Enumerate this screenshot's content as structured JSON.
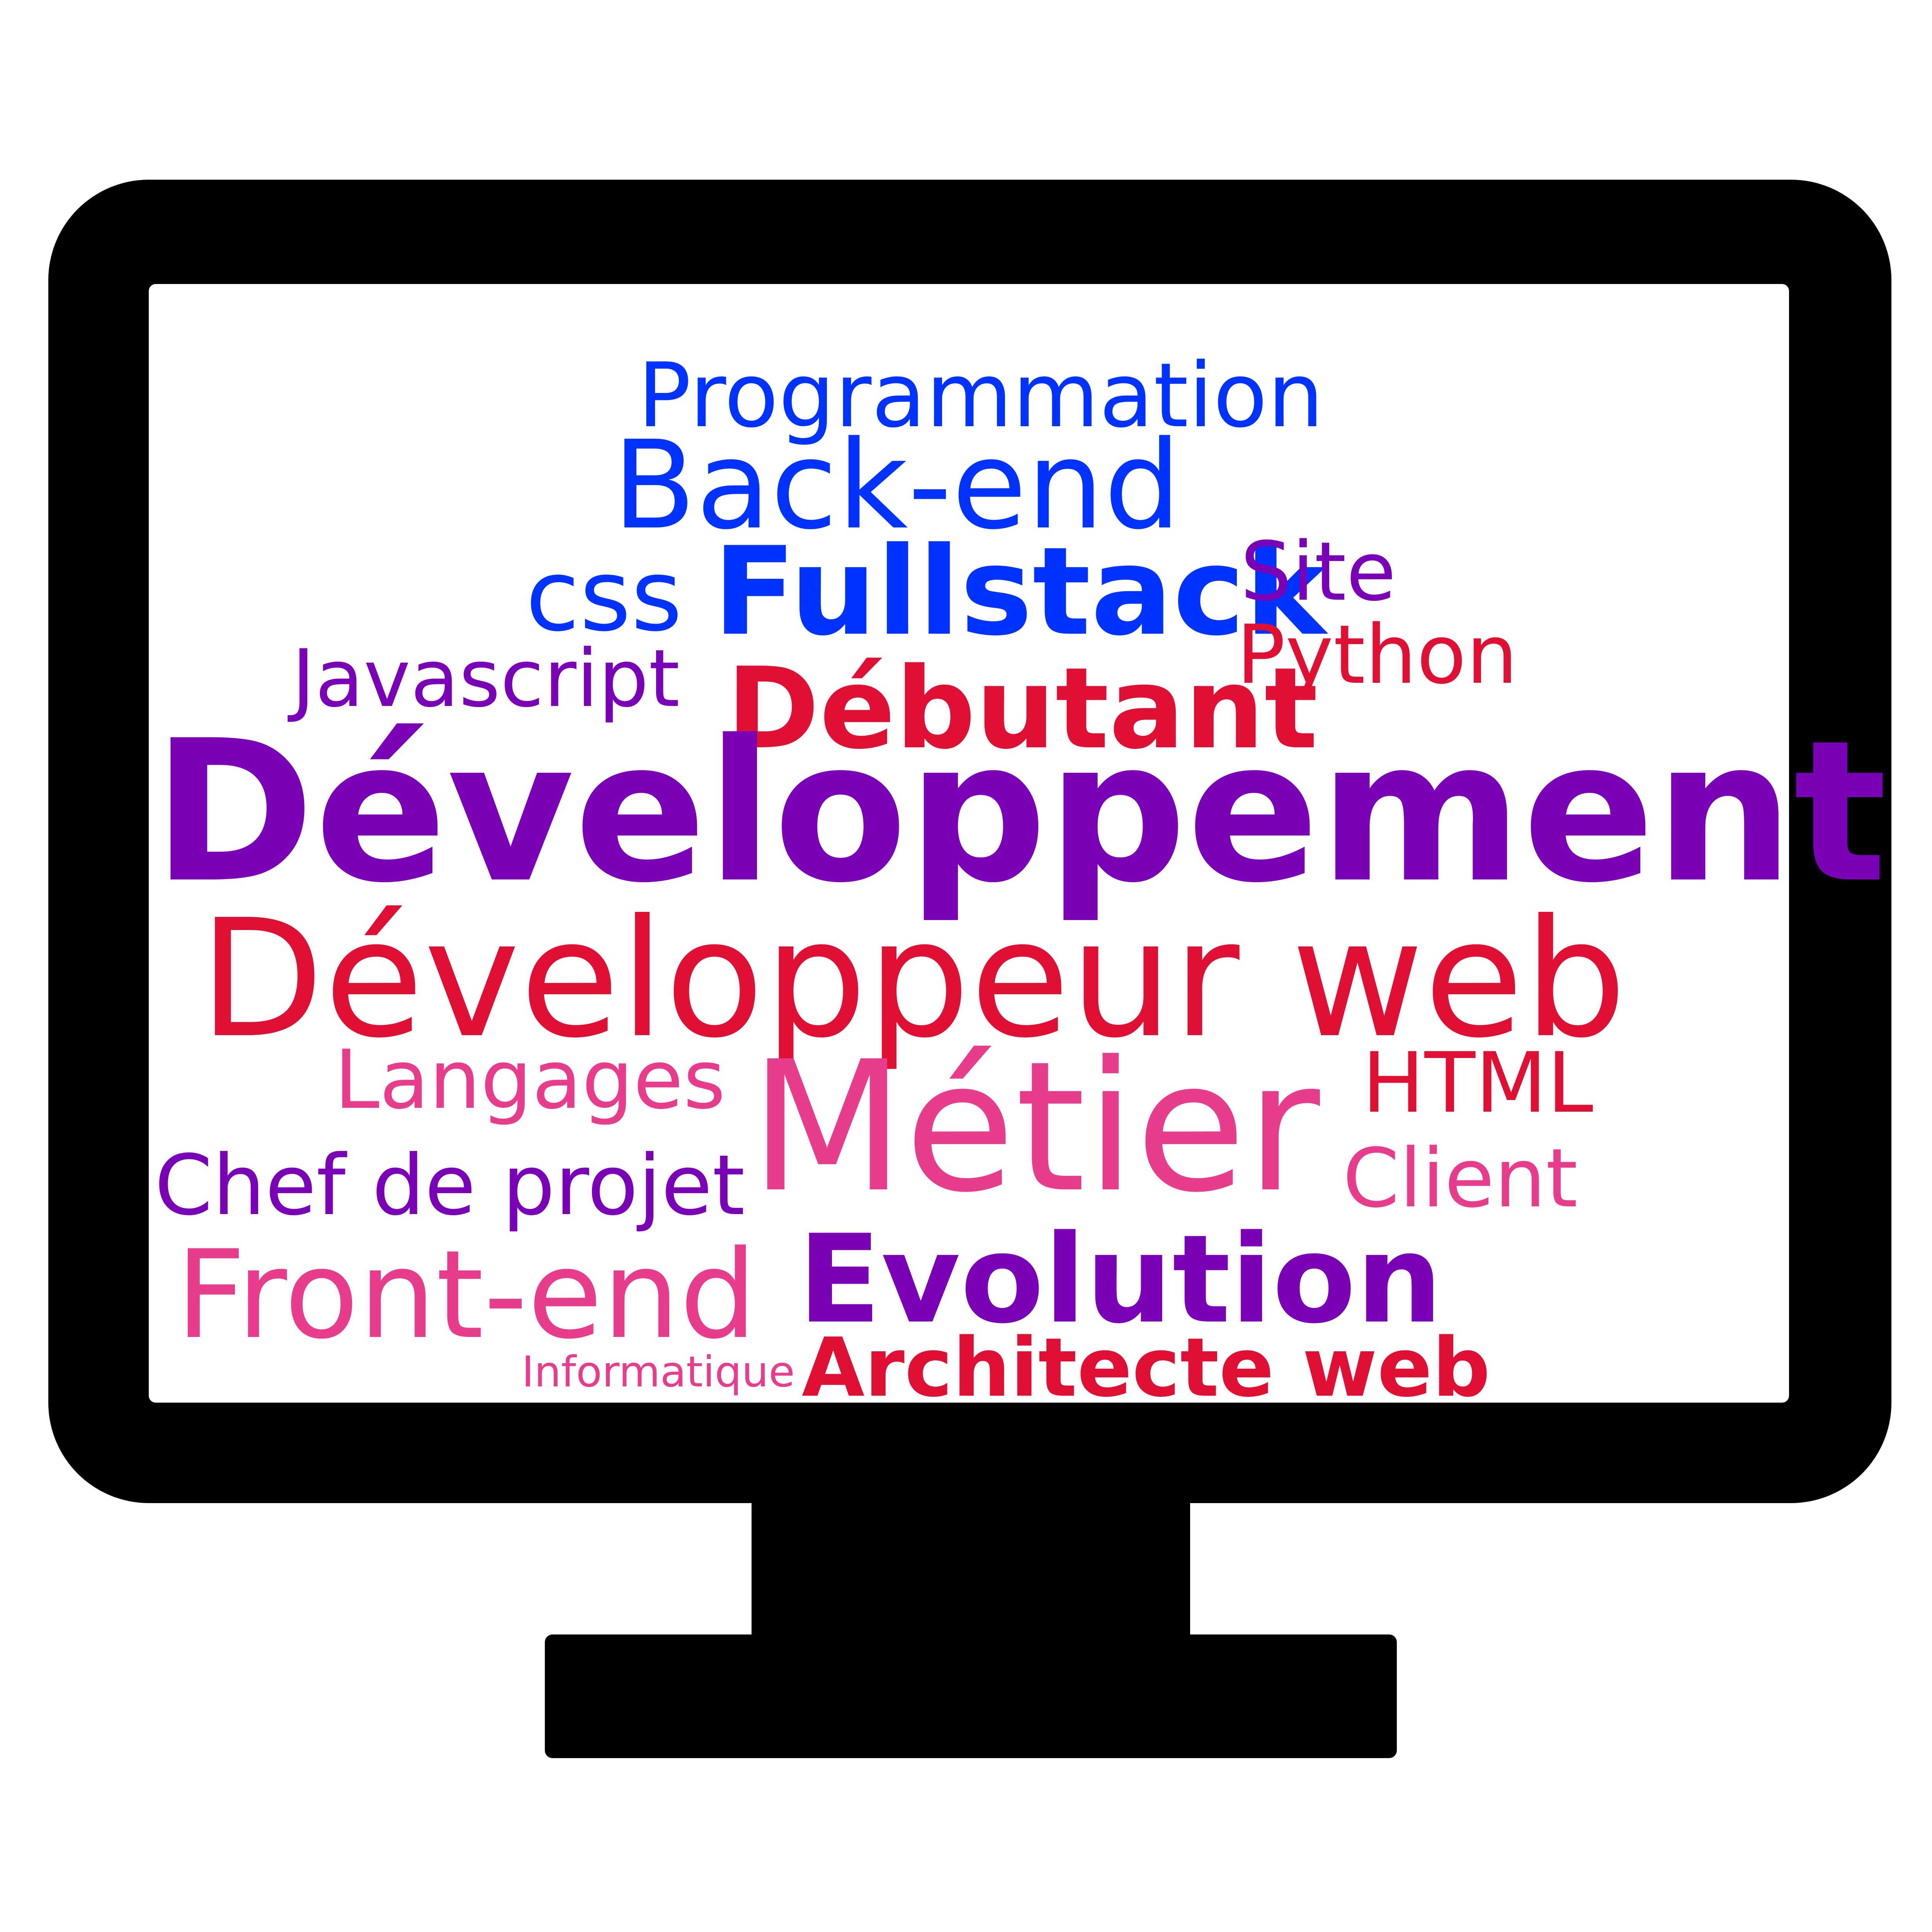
{
  "illustration": {
    "monitor_color": "#000000",
    "screen_color": "#ffffff",
    "palette": {
      "blue": "#0033ff",
      "purple": "#7a00b8",
      "red": "#e01035",
      "pink": "#e83c8c"
    }
  },
  "word_cloud": {
    "words": [
      {
        "text": "Programmation",
        "color": "#0033ff"
      },
      {
        "text": "Back-end",
        "color": "#0033ff"
      },
      {
        "text": "css",
        "color": "#0033ff"
      },
      {
        "text": "Fullstack",
        "color": "#0033ff"
      },
      {
        "text": "Site",
        "color": "#7a00b8"
      },
      {
        "text": "Python",
        "color": "#e01035"
      },
      {
        "text": "Javascript",
        "color": "#7a00b8"
      },
      {
        "text": "Débutant",
        "color": "#e01035"
      },
      {
        "text": "Développement",
        "color": "#7a00b8"
      },
      {
        "text": "Développeur web",
        "color": "#e01035"
      },
      {
        "text": "Langages",
        "color": "#e83c8c"
      },
      {
        "text": "Métier",
        "color": "#e83c8c"
      },
      {
        "text": "HTML",
        "color": "#e01035"
      },
      {
        "text": "Chef de projet",
        "color": "#7a00b8"
      },
      {
        "text": "Client",
        "color": "#e83c8c"
      },
      {
        "text": "Front-end",
        "color": "#e83c8c"
      },
      {
        "text": "Evolution",
        "color": "#7a00b8"
      },
      {
        "text": "Informatique",
        "color": "#e83c8c"
      },
      {
        "text": "Architecte web",
        "color": "#e01035"
      }
    ]
  }
}
